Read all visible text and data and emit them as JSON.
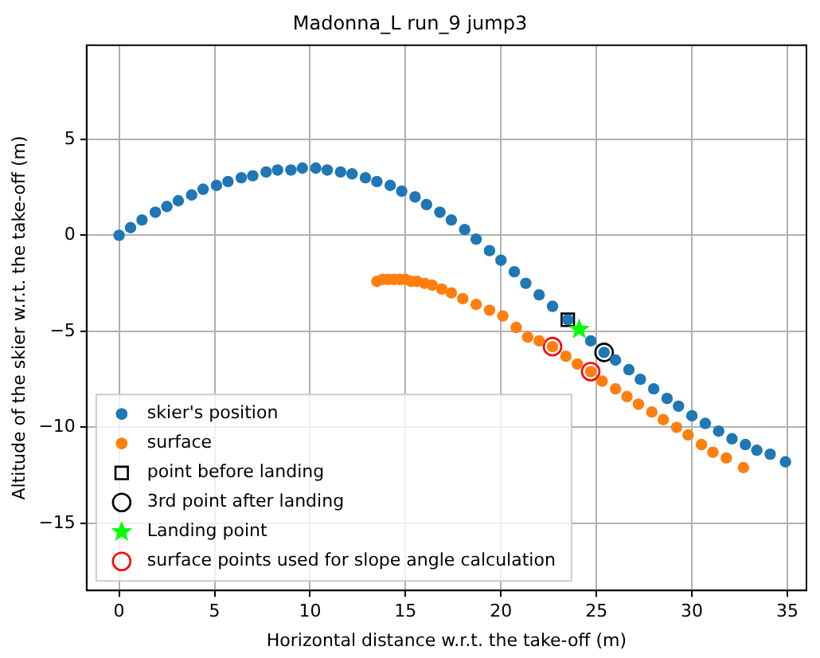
{
  "chart_data": {
    "type": "scatter",
    "title": "Madonna_L run_9 jump3",
    "xlabel": "Horizontal distance w.r.t. the take-off (m)",
    "ylabel": "Altitude of the skier w.r.t. the take-off (m)",
    "xlim": [
      -1.7,
      36.0
    ],
    "ylim": [
      -18.5,
      9.9
    ],
    "xticks": [
      0,
      5,
      10,
      15,
      20,
      25,
      30,
      35
    ],
    "yticks": [
      -15,
      -10,
      -5,
      0,
      5
    ],
    "grid": true,
    "legend": "bottom left",
    "series": [
      {
        "name": "skier's position",
        "color": "#1f77b4",
        "marker": "circle",
        "x": [
          0,
          0.6,
          1.2,
          1.9,
          2.5,
          3.1,
          3.8,
          4.4,
          5.1,
          5.7,
          6.4,
          7.0,
          7.7,
          8.3,
          9.0,
          9.6,
          10.3,
          10.9,
          11.6,
          12.2,
          12.9,
          13.5,
          14.2,
          14.8,
          15.5,
          16.1,
          16.8,
          17.4,
          18.1,
          18.7,
          19.4,
          20.0,
          20.7,
          21.3,
          22.0,
          22.7,
          23.5,
          24.1,
          24.7,
          25.4,
          26.0,
          26.7,
          27.3,
          28.0,
          28.7,
          29.3,
          30.0,
          30.7,
          31.4,
          32.1,
          32.8,
          33.4,
          34.1,
          34.9
        ],
        "values": [
          0,
          0.4,
          0.8,
          1.2,
          1.5,
          1.8,
          2.1,
          2.4,
          2.6,
          2.8,
          3.0,
          3.1,
          3.3,
          3.4,
          3.4,
          3.5,
          3.5,
          3.4,
          3.3,
          3.2,
          3.0,
          2.8,
          2.6,
          2.3,
          2.0,
          1.6,
          1.2,
          0.8,
          0.3,
          -0.2,
          -0.8,
          -1.3,
          -1.9,
          -2.5,
          -3.1,
          -3.7,
          -4.4,
          null,
          -5.5,
          -6.1,
          -6.5,
          -7.0,
          -7.5,
          -8.0,
          -8.5,
          -8.9,
          -9.4,
          -9.8,
          -10.2,
          -10.6,
          -10.9,
          -11.2,
          -11.4,
          -11.8
        ]
      },
      {
        "name": "surface",
        "color": "#ff7f0e",
        "marker": "circle",
        "x": [
          13.5,
          13.8,
          14.1,
          14.4,
          14.7,
          15.0,
          15.3,
          15.6,
          16.0,
          16.4,
          16.9,
          17.4,
          18.0,
          18.7,
          19.4,
          20.1,
          20.8,
          21.4,
          22.0,
          22.7,
          23.4,
          24.0,
          24.7,
          25.3,
          26.0,
          26.6,
          27.2,
          27.9,
          28.5,
          29.2,
          29.8,
          30.5,
          31.1,
          31.8,
          32.7
        ],
        "values": [
          -2.4,
          -2.3,
          -2.3,
          -2.3,
          -2.3,
          -2.3,
          -2.4,
          -2.4,
          -2.5,
          -2.6,
          -2.8,
          -3.0,
          -3.3,
          -3.6,
          -3.9,
          -4.2,
          -4.8,
          -5.3,
          -5.5,
          -5.8,
          -6.3,
          -6.7,
          -7.1,
          -7.6,
          -8.0,
          -8.4,
          -8.8,
          -9.2,
          -9.6,
          -10.0,
          -10.4,
          -10.9,
          -11.3,
          -11.6,
          -12.1
        ]
      },
      {
        "name": "point before landing",
        "color": "#000000",
        "marker": "square",
        "x": [
          23.5
        ],
        "values": [
          -4.4
        ]
      },
      {
        "name": "3rd point after landing",
        "color": "#000000",
        "marker": "circle",
        "x": [
          25.4
        ],
        "values": [
          -6.1
        ]
      },
      {
        "name": "Landing point",
        "color": "#00ff00",
        "marker": "star",
        "x": [
          24.1
        ],
        "values": [
          -4.9
        ]
      },
      {
        "name": "surface points used for slope angle calculation",
        "color": "#ff0000",
        "marker": "circle",
        "x": [
          22.7,
          24.7
        ],
        "values": [
          -5.8,
          -7.1
        ]
      }
    ]
  }
}
